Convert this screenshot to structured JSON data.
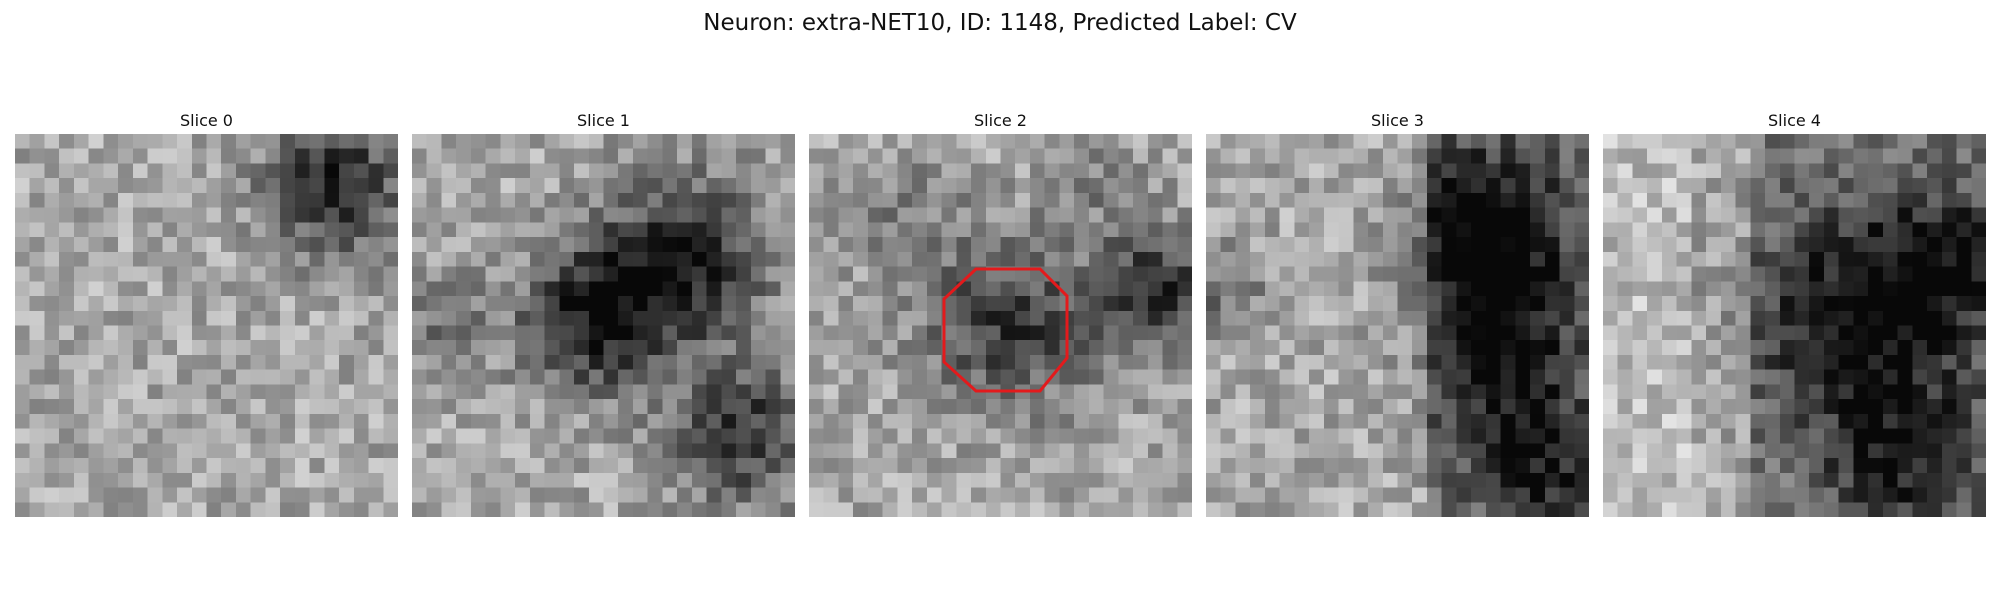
{
  "figure": {
    "title": "Neuron: extra-NET10, ID: 1148, Predicted Label: CV"
  },
  "panels": [
    {
      "title": "Slice 0",
      "has_roi": false
    },
    {
      "title": "Slice 1",
      "has_roi": false
    },
    {
      "title": "Slice 2",
      "has_roi": true
    },
    {
      "title": "Slice 3",
      "has_roi": false
    },
    {
      "title": "Slice 4",
      "has_roi": false
    }
  ],
  "roi": {
    "shape": "octagon",
    "color": "#e31a1c"
  },
  "colors": {
    "colormap": "grayscale",
    "background": "#ffffff"
  }
}
